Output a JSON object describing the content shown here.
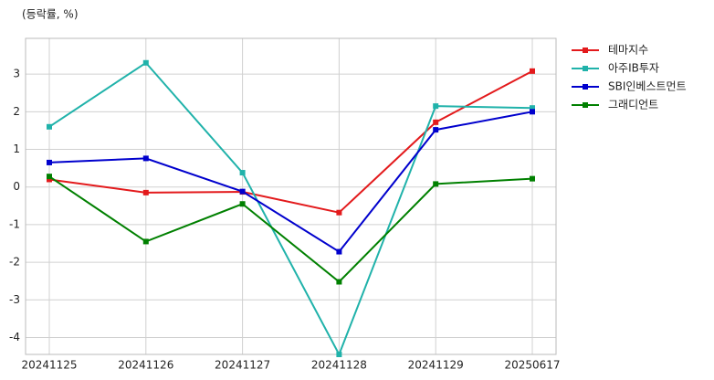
{
  "chart_data": {
    "type": "line",
    "unit_note": "(등락률, %)",
    "categories": [
      "20241125",
      "20241126",
      "20241127",
      "20241128",
      "20241129",
      "20250617"
    ],
    "series": [
      {
        "name": "테마지수",
        "color": "#e31a1c",
        "values": [
          0.2,
          -0.15,
          -0.13,
          -0.68,
          1.72,
          3.08
        ]
      },
      {
        "name": "아주IB투자",
        "color": "#20b2aa",
        "values": [
          1.6,
          3.3,
          0.38,
          -4.45,
          2.15,
          2.1
        ]
      },
      {
        "name": "SBI인베스트먼트",
        "color": "#0000cd",
        "values": [
          0.65,
          0.76,
          -0.12,
          -1.72,
          1.52,
          2.0
        ]
      },
      {
        "name": "그래디언트",
        "color": "#008000",
        "values": [
          0.28,
          -1.45,
          -0.45,
          -2.52,
          0.08,
          0.22
        ]
      }
    ],
    "ylim": [
      -4.45,
      3.95
    ],
    "yticks": [
      -4,
      -3,
      -2,
      -1,
      0,
      1,
      2,
      3
    ],
    "grid": true,
    "legend": "right"
  }
}
